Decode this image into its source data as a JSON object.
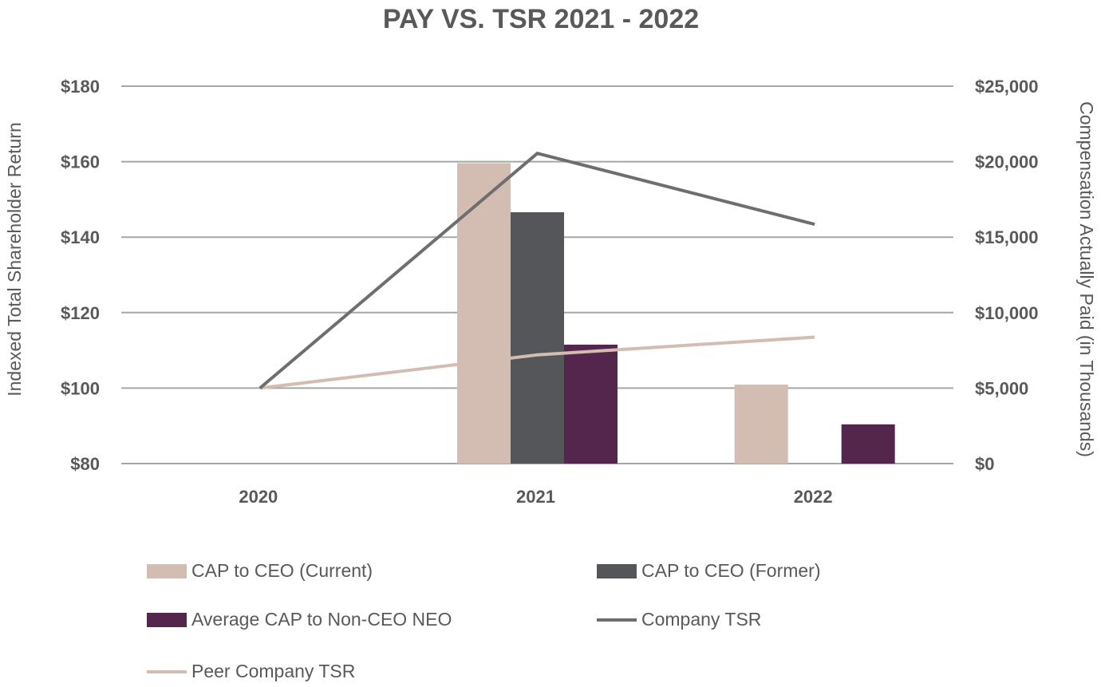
{
  "chart_data": {
    "type": "bar",
    "title": "PAY VS. TSR 2021 - 2022",
    "categories": [
      "2020",
      "2021",
      "2022"
    ],
    "ylabel": "Indexed Total Shareholder Return",
    "y2label": "Compensation Actually Paid (in Thousands)",
    "ylim": [
      80,
      180
    ],
    "y2lim": [
      0,
      25000
    ],
    "yticks": [
      "$80",
      "$100",
      "$120",
      "$140",
      "$160",
      "$180"
    ],
    "y2ticks": [
      "$0",
      "$5,000",
      "$10,000",
      "$15,000",
      "$20,000",
      "$25,000"
    ],
    "grid": true,
    "legend_position": "bottom",
    "series": [
      {
        "name": "CAP to CEO (Current)",
        "kind": "bar",
        "axis": "right",
        "color": "#D3BCB1",
        "values": [
          null,
          19900,
          5230
        ]
      },
      {
        "name": "CAP to CEO (Former)",
        "kind": "bar",
        "axis": "right",
        "color": "#55565A",
        "values": [
          null,
          16650,
          null
        ]
      },
      {
        "name": "Average CAP to Non-CEO NEO",
        "kind": "bar",
        "axis": "right",
        "color": "#54264E",
        "values": [
          null,
          7880,
          2600
        ]
      },
      {
        "name": "Company TSR",
        "kind": "line",
        "axis": "left",
        "color": "#6E6E6E",
        "values": [
          100,
          162.2,
          143.4
        ]
      },
      {
        "name": "Peer Company TSR",
        "kind": "line",
        "axis": "left",
        "color": "#D3BCB1",
        "values": [
          100,
          108.8,
          113.5
        ]
      }
    ]
  }
}
